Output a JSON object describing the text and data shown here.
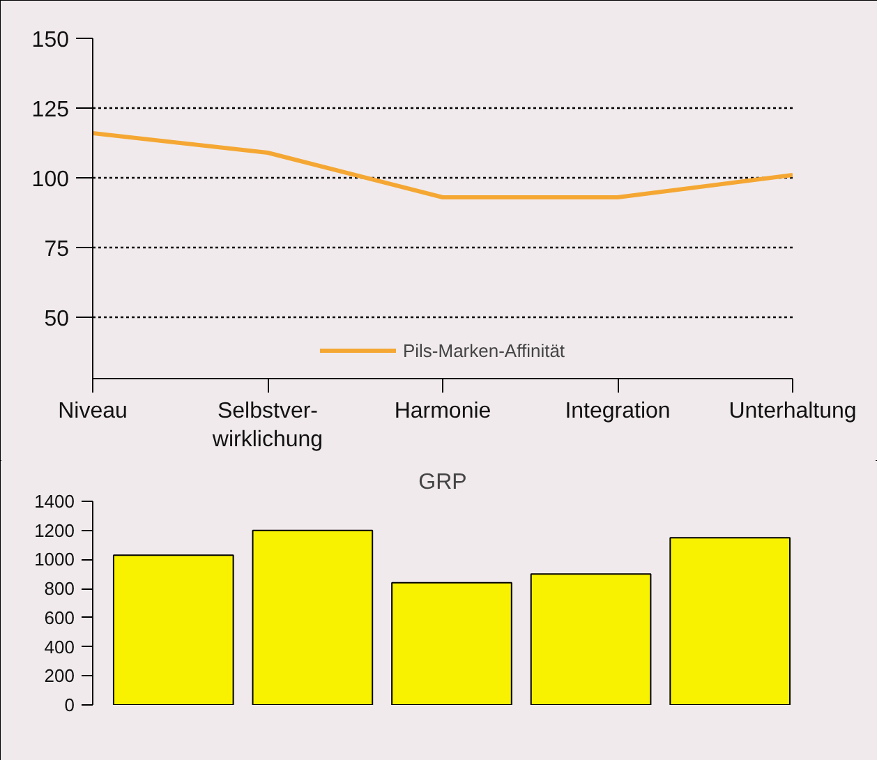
{
  "chart_data": [
    {
      "type": "line",
      "categories": [
        "Niveau",
        "Selbstver-\nwirklichung",
        "Harmonie",
        "Integration",
        "Unterhaltung"
      ],
      "series": [
        {
          "name": "Pils-Marken-Affinität",
          "color": "#f5a733",
          "values": [
            116,
            109,
            93,
            93,
            101
          ]
        }
      ],
      "ylim": [
        28,
        150
      ],
      "yticks": [
        50,
        75,
        100,
        125,
        150
      ],
      "grid": "y",
      "line_style": "solid",
      "legend": "bottom"
    },
    {
      "type": "bar",
      "title": "GRP",
      "categories": [
        null,
        null,
        null,
        null,
        null
      ],
      "series": [
        {
          "color": "#f8f200",
          "values": [
            1030,
            1200,
            840,
            900,
            1150
          ]
        }
      ],
      "ylim": [
        0,
        1400
      ],
      "yticks": [
        0,
        200,
        400,
        600,
        800,
        1000,
        1200,
        1400
      ],
      "tick_labels": "y"
    }
  ]
}
